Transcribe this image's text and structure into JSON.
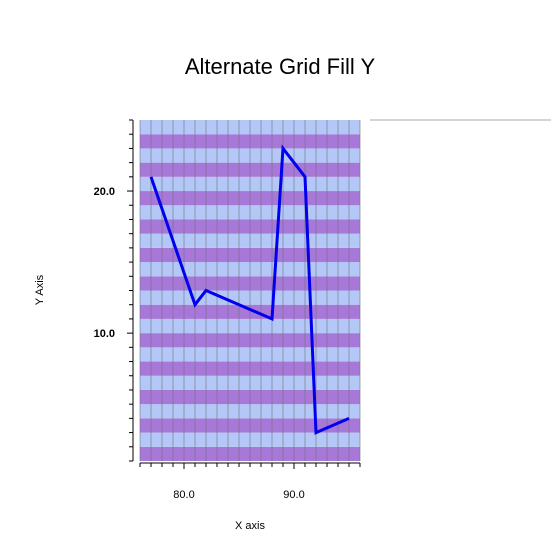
{
  "chart_data": {
    "type": "line",
    "title": "Alternate Grid Fill Y",
    "xlabel": "X axis",
    "ylabel": "Y Axis",
    "xlim": [
      76,
      96
    ],
    "ylim": [
      1.0,
      25.0
    ],
    "x_ticks": [
      80,
      90
    ],
    "x_tick_labels": [
      "80.0",
      "90.0"
    ],
    "y_ticks": [
      10,
      20
    ],
    "y_tick_labels": [
      "10.0",
      "20.0"
    ],
    "grid": true,
    "grid_fill_colors": [
      "#a878d8",
      "#b4c8f8"
    ],
    "series": [
      {
        "color": "#0000ee",
        "x": [
          77,
          81,
          82,
          88,
          89,
          91,
          92,
          95
        ],
        "y": [
          21.0,
          12.0,
          13.0,
          11.0,
          23.0,
          21.0,
          3.0,
          4.0
        ]
      }
    ]
  }
}
